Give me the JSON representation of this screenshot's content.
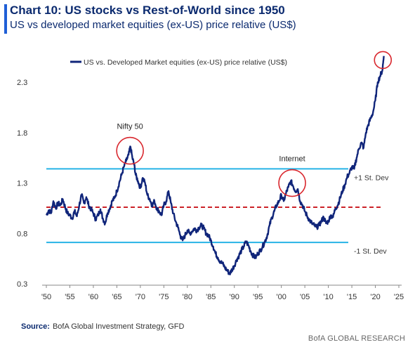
{
  "header": {
    "title": "Chart 10: US stocks vs Rest-of-World since 1950",
    "subtitle": "US vs developed market equities (ex-US) price relative (US$)"
  },
  "footer": {
    "source_label": "Source:",
    "source_text": "BofA Global Investment Strategy, GFD",
    "brand": "BofA GLOBAL RESEARCH"
  },
  "colors": {
    "series": "#10257a",
    "accent": "#1f5fd6",
    "band": "#27b3e6",
    "mean": "#cc2229",
    "highlight": "#d9272e"
  },
  "chart_data": {
    "type": "line",
    "legend": {
      "label": "US vs. Developed Market equities (ex-US) price relative (US$)",
      "position": "top"
    },
    "xlim": [
      1950,
      2025
    ],
    "ylim": [
      0.3,
      2.6
    ],
    "x_ticks": [
      1950,
      1955,
      1960,
      1965,
      1970,
      1975,
      1980,
      1985,
      1990,
      1995,
      2000,
      2005,
      2010,
      2015,
      2020,
      2025
    ],
    "x_tick_labels": [
      "'50",
      "'55",
      "'60",
      "'65",
      "'70",
      "'75",
      "'80",
      "'85",
      "'90",
      "'95",
      "'00",
      "'05",
      "'10",
      "'15",
      "'20",
      "'25"
    ],
    "y_ticks": [
      0.3,
      0.8,
      1.3,
      1.8,
      2.3
    ],
    "y_tick_labels": [
      "0.3",
      "0.8",
      "1.3",
      "1.8",
      "2.3"
    ],
    "reference_lines": [
      {
        "label": "+1 St. Dev",
        "y": 1.44,
        "style": "solid"
      },
      {
        "label": "",
        "y": 1.06,
        "style": "dashed"
      },
      {
        "label": "-1 St. Dev",
        "y": 0.71,
        "style": "solid"
      }
    ],
    "annotations": [
      {
        "label": "Nifty 50",
        "x": 1967.8,
        "y": 1.62
      },
      {
        "label": "Internet",
        "x": 2002.3,
        "y": 1.3
      },
      {
        "label": "",
        "x": 2021.6,
        "y": 2.52
      }
    ],
    "series": [
      {
        "points": [
          [
            1950.0,
            0.98
          ],
          [
            1950.5,
            1.03
          ],
          [
            1951.0,
            1.0
          ],
          [
            1951.5,
            1.12
          ],
          [
            1952.0,
            1.05
          ],
          [
            1952.5,
            1.1
          ],
          [
            1953.0,
            1.08
          ],
          [
            1953.5,
            1.14
          ],
          [
            1954.0,
            1.06
          ],
          [
            1954.5,
            1.0
          ],
          [
            1955.0,
            0.98
          ],
          [
            1955.5,
            0.95
          ],
          [
            1956.0,
            1.02
          ],
          [
            1956.5,
            0.97
          ],
          [
            1957.0,
            1.08
          ],
          [
            1957.5,
            1.18
          ],
          [
            1958.0,
            1.1
          ],
          [
            1958.5,
            1.16
          ],
          [
            1959.0,
            1.08
          ],
          [
            1959.5,
            1.04
          ],
          [
            1960.0,
            1.0
          ],
          [
            1960.5,
            0.94
          ],
          [
            1961.0,
            0.98
          ],
          [
            1961.5,
            1.04
          ],
          [
            1962.0,
            0.95
          ],
          [
            1962.5,
            0.9
          ],
          [
            1963.0,
            1.0
          ],
          [
            1963.5,
            1.05
          ],
          [
            1964.0,
            1.12
          ],
          [
            1964.5,
            1.15
          ],
          [
            1965.0,
            1.22
          ],
          [
            1965.5,
            1.3
          ],
          [
            1966.0,
            1.38
          ],
          [
            1966.5,
            1.46
          ],
          [
            1967.0,
            1.52
          ],
          [
            1967.5,
            1.58
          ],
          [
            1967.9,
            1.66
          ],
          [
            1968.3,
            1.55
          ],
          [
            1968.7,
            1.48
          ],
          [
            1969.0,
            1.38
          ],
          [
            1969.5,
            1.32
          ],
          [
            1970.0,
            1.25
          ],
          [
            1970.5,
            1.35
          ],
          [
            1971.0,
            1.3
          ],
          [
            1971.5,
            1.18
          ],
          [
            1972.0,
            1.14
          ],
          [
            1972.5,
            1.08
          ],
          [
            1973.0,
            1.12
          ],
          [
            1973.5,
            1.05
          ],
          [
            1974.0,
            1.02
          ],
          [
            1974.5,
            0.98
          ],
          [
            1975.0,
            1.08
          ],
          [
            1975.5,
            1.12
          ],
          [
            1976.0,
            1.22
          ],
          [
            1976.5,
            1.1
          ],
          [
            1977.0,
            1.0
          ],
          [
            1977.5,
            0.92
          ],
          [
            1978.0,
            0.86
          ],
          [
            1978.5,
            0.78
          ],
          [
            1979.0,
            0.73
          ],
          [
            1979.5,
            0.78
          ],
          [
            1980.0,
            0.83
          ],
          [
            1980.5,
            0.8
          ],
          [
            1981.0,
            0.82
          ],
          [
            1981.5,
            0.85
          ],
          [
            1982.0,
            0.83
          ],
          [
            1982.5,
            0.86
          ],
          [
            1983.0,
            0.88
          ],
          [
            1983.5,
            0.85
          ],
          [
            1984.0,
            0.8
          ],
          [
            1984.5,
            0.78
          ],
          [
            1985.0,
            0.73
          ],
          [
            1985.5,
            0.67
          ],
          [
            1986.0,
            0.6
          ],
          [
            1986.5,
            0.56
          ],
          [
            1987.0,
            0.52
          ],
          [
            1987.5,
            0.5
          ],
          [
            1988.0,
            0.46
          ],
          [
            1988.5,
            0.43
          ],
          [
            1989.0,
            0.4
          ],
          [
            1989.5,
            0.44
          ],
          [
            1990.0,
            0.48
          ],
          [
            1990.5,
            0.54
          ],
          [
            1991.0,
            0.58
          ],
          [
            1991.5,
            0.63
          ],
          [
            1992.0,
            0.67
          ],
          [
            1992.5,
            0.72
          ],
          [
            1993.0,
            0.68
          ],
          [
            1993.5,
            0.62
          ],
          [
            1994.0,
            0.58
          ],
          [
            1994.5,
            0.56
          ],
          [
            1995.0,
            0.6
          ],
          [
            1995.5,
            0.63
          ],
          [
            1996.0,
            0.67
          ],
          [
            1996.5,
            0.72
          ],
          [
            1997.0,
            0.78
          ],
          [
            1997.5,
            0.88
          ],
          [
            1998.0,
            0.96
          ],
          [
            1998.5,
            1.02
          ],
          [
            1999.0,
            1.08
          ],
          [
            1999.5,
            1.12
          ],
          [
            2000.0,
            1.18
          ],
          [
            2000.5,
            1.12
          ],
          [
            2001.0,
            1.2
          ],
          [
            2001.5,
            1.26
          ],
          [
            2002.0,
            1.32
          ],
          [
            2002.5,
            1.27
          ],
          [
            2003.0,
            1.22
          ],
          [
            2003.5,
            1.24
          ],
          [
            2004.0,
            1.12
          ],
          [
            2004.5,
            1.08
          ],
          [
            2005.0,
            1.02
          ],
          [
            2005.5,
            0.97
          ],
          [
            2006.0,
            0.93
          ],
          [
            2006.5,
            0.9
          ],
          [
            2007.0,
            0.88
          ],
          [
            2007.5,
            0.86
          ],
          [
            2008.0,
            0.88
          ],
          [
            2008.5,
            0.92
          ],
          [
            2009.0,
            0.96
          ],
          [
            2009.5,
            0.9
          ],
          [
            2010.0,
            0.92
          ],
          [
            2010.5,
            0.98
          ],
          [
            2011.0,
            0.96
          ],
          [
            2011.5,
            1.05
          ],
          [
            2012.0,
            1.08
          ],
          [
            2012.5,
            1.15
          ],
          [
            2013.0,
            1.22
          ],
          [
            2013.5,
            1.28
          ],
          [
            2014.0,
            1.36
          ],
          [
            2014.5,
            1.4
          ],
          [
            2015.0,
            1.46
          ],
          [
            2015.5,
            1.44
          ],
          [
            2016.0,
            1.55
          ],
          [
            2016.5,
            1.64
          ],
          [
            2017.0,
            1.7
          ],
          [
            2017.5,
            1.65
          ],
          [
            2018.0,
            1.8
          ],
          [
            2018.5,
            1.88
          ],
          [
            2019.0,
            1.94
          ],
          [
            2019.5,
            2.0
          ],
          [
            2020.0,
            2.12
          ],
          [
            2020.5,
            2.3
          ],
          [
            2021.0,
            2.36
          ],
          [
            2021.5,
            2.42
          ],
          [
            2021.8,
            2.56
          ]
        ]
      }
    ]
  }
}
